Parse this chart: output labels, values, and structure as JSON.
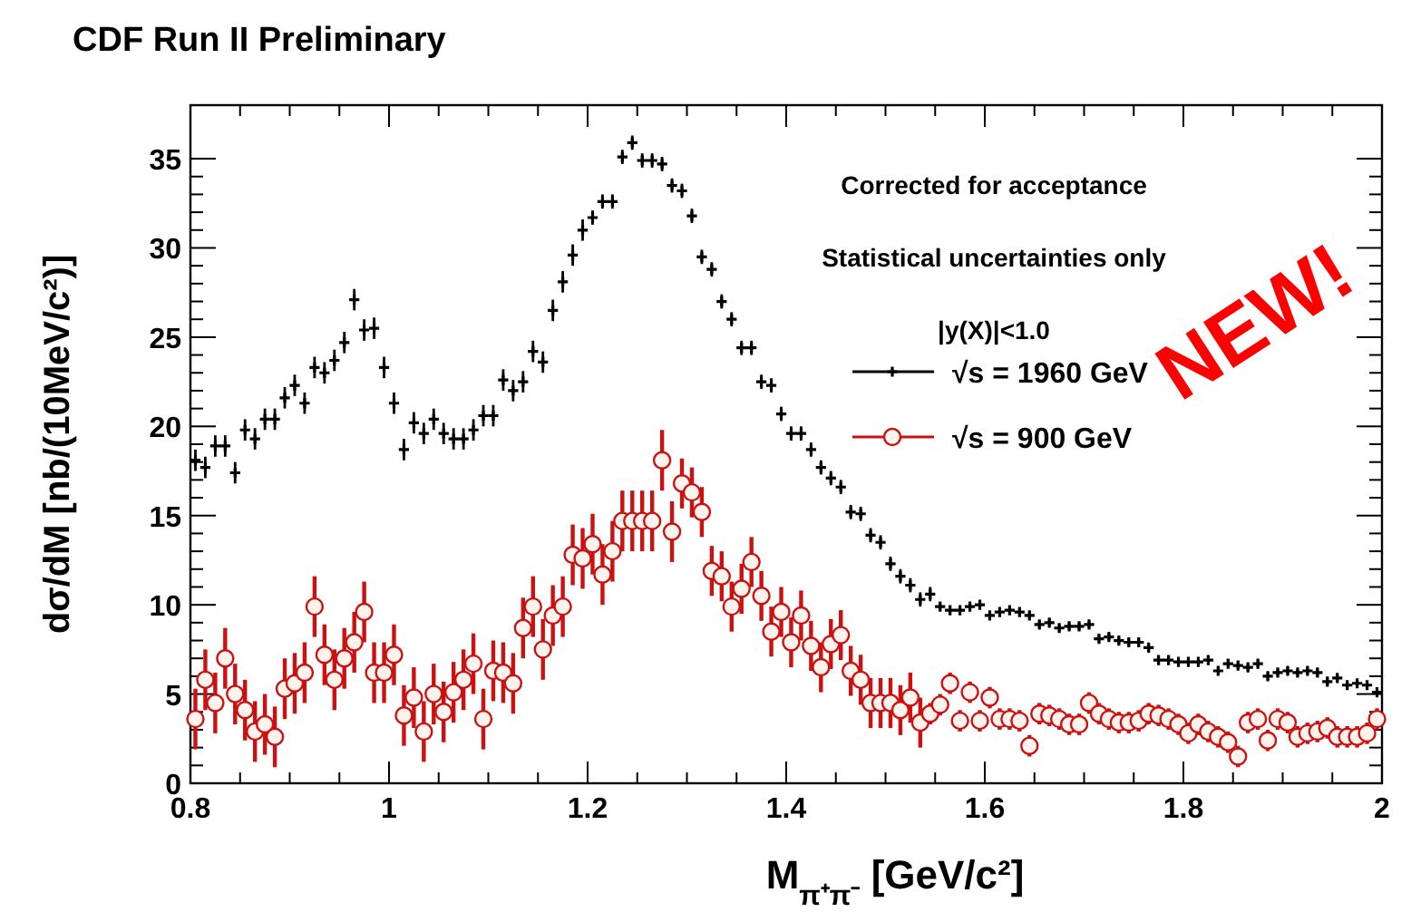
{
  "chart_data": {
    "type": "scatter",
    "title": "CDF Run II Preliminary",
    "xlabel": "M$_{π⁺π⁻}$ [GeV/c²]",
    "ylabel": "dσ/dM [nb/(10MeV/c²)]",
    "annotations": [
      "Corrected for acceptance",
      "Statistical uncertainties only",
      "|y(X)|<1.0",
      "NEW!"
    ],
    "xlim": [
      0.8,
      2
    ],
    "ylim": [
      0,
      38
    ],
    "xticks": [
      0.8,
      1,
      1.2,
      1.4,
      1.6,
      1.8,
      2
    ],
    "yticks": [
      0,
      5,
      10,
      15,
      20,
      25,
      30,
      35
    ],
    "grid": false,
    "legend": "top right",
    "x": [
      0.805,
      0.815,
      0.825,
      0.835,
      0.845,
      0.855,
      0.865,
      0.875,
      0.885,
      0.895,
      0.905,
      0.915,
      0.925,
      0.935,
      0.945,
      0.955,
      0.965,
      0.975,
      0.985,
      0.995,
      1.005,
      1.015,
      1.025,
      1.035,
      1.045,
      1.055,
      1.065,
      1.075,
      1.085,
      1.095,
      1.105,
      1.115,
      1.125,
      1.135,
      1.145,
      1.155,
      1.165,
      1.175,
      1.185,
      1.195,
      1.205,
      1.215,
      1.225,
      1.235,
      1.245,
      1.255,
      1.265,
      1.275,
      1.285,
      1.295,
      1.305,
      1.315,
      1.325,
      1.335,
      1.345,
      1.355,
      1.365,
      1.375,
      1.385,
      1.395,
      1.405,
      1.415,
      1.425,
      1.435,
      1.445,
      1.455,
      1.465,
      1.475,
      1.485,
      1.495,
      1.505,
      1.515,
      1.525,
      1.535,
      1.545,
      1.555,
      1.565,
      1.575,
      1.585,
      1.595,
      1.605,
      1.615,
      1.625,
      1.635,
      1.645,
      1.655,
      1.665,
      1.675,
      1.685,
      1.695,
      1.705,
      1.715,
      1.725,
      1.735,
      1.745,
      1.755,
      1.765,
      1.775,
      1.785,
      1.795,
      1.805,
      1.815,
      1.825,
      1.835,
      1.845,
      1.855,
      1.865,
      1.875,
      1.885,
      1.895,
      1.905,
      1.915,
      1.925,
      1.935,
      1.945,
      1.955,
      1.965,
      1.975,
      1.985,
      1.995
    ],
    "series": [
      {
        "name": "√s = 1960 GeV",
        "color": "#000000",
        "marker": "cross",
        "values": [
          18.1,
          17.7,
          18.9,
          18.9,
          17.4,
          19.8,
          19.3,
          20.4,
          20.4,
          21.6,
          22.3,
          21.3,
          23.3,
          23.0,
          23.7,
          24.7,
          27.1,
          25.4,
          25.5,
          23.3,
          21.3,
          18.7,
          20.2,
          19.6,
          20.4,
          19.6,
          19.3,
          19.3,
          19.8,
          20.6,
          20.6,
          22.6,
          22.0,
          22.5,
          24.2,
          23.6,
          26.5,
          28.1,
          29.6,
          31.0,
          31.7,
          32.6,
          32.6,
          35.1,
          35.9,
          34.9,
          34.9,
          34.7,
          33.5,
          33.2,
          31.8,
          29.5,
          28.8,
          27.0,
          26.0,
          24.4,
          24.4,
          22.5,
          22.3,
          20.7,
          19.6,
          19.6,
          18.7,
          17.7,
          17.1,
          16.6,
          15.2,
          15.1,
          13.9,
          13.5,
          12.3,
          11.6,
          11.1,
          10.3,
          10.6,
          9.9,
          9.7,
          9.7,
          9.9,
          10.0,
          9.4,
          9.6,
          9.7,
          9.6,
          9.4,
          8.9,
          9.0,
          8.7,
          8.8,
          8.8,
          8.9,
          8.1,
          8.2,
          8.0,
          7.9,
          7.9,
          7.6,
          6.9,
          6.9,
          6.8,
          6.8,
          6.8,
          6.9,
          6.3,
          6.7,
          6.6,
          6.5,
          6.7,
          6.0,
          6.2,
          6.3,
          6.2,
          6.3,
          6.2,
          5.7,
          5.9,
          5.5,
          5.6,
          5.5,
          5.1
        ],
        "errors": [
          0.6,
          0.6,
          0.6,
          0.6,
          0.6,
          0.6,
          0.6,
          0.6,
          0.6,
          0.6,
          0.6,
          0.6,
          0.6,
          0.6,
          0.6,
          0.6,
          0.6,
          0.6,
          0.6,
          0.6,
          0.6,
          0.6,
          0.6,
          0.6,
          0.6,
          0.6,
          0.6,
          0.6,
          0.6,
          0.6,
          0.6,
          0.6,
          0.6,
          0.6,
          0.6,
          0.6,
          0.6,
          0.6,
          0.6,
          0.6,
          0.4,
          0.4,
          0.4,
          0.4,
          0.4,
          0.4,
          0.4,
          0.4,
          0.4,
          0.4,
          0.4,
          0.4,
          0.4,
          0.4,
          0.4,
          0.4,
          0.4,
          0.4,
          0.4,
          0.4,
          0.4,
          0.4,
          0.4,
          0.4,
          0.4,
          0.4,
          0.4,
          0.4,
          0.4,
          0.4,
          0.4,
          0.4,
          0.4,
          0.4,
          0.4,
          0.2,
          0.2,
          0.2,
          0.2,
          0.2,
          0.2,
          0.2,
          0.2,
          0.2,
          0.2,
          0.2,
          0.2,
          0.2,
          0.2,
          0.2,
          0.2,
          0.2,
          0.2,
          0.2,
          0.2,
          0.2,
          0.2,
          0.2,
          0.2,
          0.2,
          0.2,
          0.2,
          0.2,
          0.2,
          0.2,
          0.2,
          0.2,
          0.2,
          0.2,
          0.2,
          0.2,
          0.2,
          0.2,
          0.2,
          0.2,
          0.2,
          0.2,
          0.2,
          0.2,
          0.2
        ]
      },
      {
        "name": "√s = 900 GeV",
        "color": "#cc1111",
        "marker": "circle",
        "values": [
          3.6,
          5.8,
          4.5,
          7.0,
          5.0,
          4.1,
          2.9,
          3.3,
          2.6,
          5.3,
          5.6,
          6.2,
          9.9,
          7.2,
          5.8,
          7.0,
          7.9,
          9.6,
          6.2,
          6.2,
          7.2,
          3.8,
          4.8,
          2.9,
          5.0,
          4.0,
          5.1,
          5.8,
          6.7,
          3.6,
          6.3,
          6.2,
          5.6,
          8.7,
          9.9,
          7.5,
          9.4,
          9.9,
          12.8,
          12.6,
          13.4,
          11.7,
          13.0,
          14.7,
          14.7,
          14.7,
          14.7,
          18.1,
          14.1,
          16.8,
          16.3,
          15.2,
          11.9,
          11.6,
          9.9,
          10.9,
          12.4,
          10.5,
          8.5,
          9.6,
          7.9,
          9.4,
          7.7,
          6.5,
          7.8,
          8.3,
          6.3,
          5.8,
          4.5,
          4.5,
          4.5,
          4.1,
          4.8,
          3.4,
          3.9,
          4.4,
          5.6,
          3.5,
          5.1,
          3.5,
          4.8,
          3.6,
          3.6,
          3.5,
          2.1,
          3.9,
          3.8,
          3.6,
          3.3,
          3.3,
          4.5,
          3.9,
          3.6,
          3.4,
          3.4,
          3.5,
          3.9,
          3.8,
          3.6,
          3.3,
          2.8,
          3.3,
          2.9,
          2.6,
          2.3,
          1.5,
          3.4,
          3.6,
          2.4,
          3.6,
          3.4,
          2.6,
          2.8,
          2.9,
          3.1,
          2.6,
          2.6,
          2.6,
          2.8,
          3.6
        ],
        "errors": [
          1.7,
          1.7,
          1.7,
          1.7,
          1.7,
          1.7,
          1.7,
          1.7,
          1.7,
          1.7,
          1.7,
          1.7,
          1.7,
          1.7,
          1.7,
          1.7,
          1.7,
          1.7,
          1.7,
          1.7,
          1.7,
          1.7,
          1.7,
          1.7,
          1.7,
          1.7,
          1.7,
          1.7,
          1.7,
          1.7,
          1.7,
          1.7,
          1.7,
          1.7,
          1.7,
          1.7,
          1.7,
          1.7,
          1.7,
          1.7,
          1.7,
          1.7,
          1.7,
          1.7,
          1.7,
          1.7,
          1.7,
          1.7,
          1.7,
          1.4,
          1.4,
          1.4,
          1.4,
          1.4,
          1.4,
          1.4,
          1.4,
          1.4,
          1.4,
          1.4,
          1.4,
          1.4,
          1.4,
          1.4,
          1.4,
          1.4,
          1.4,
          1.4,
          1.4,
          1.4,
          1.4,
          1.4,
          1.4,
          1.4,
          0.6,
          0.6,
          0.6,
          0.6,
          0.6,
          0.6,
          0.6,
          0.6,
          0.6,
          0.6,
          0.6,
          0.6,
          0.6,
          0.6,
          0.6,
          0.6,
          0.6,
          0.6,
          0.6,
          0.6,
          0.6,
          0.6,
          0.6,
          0.6,
          0.6,
          0.6,
          0.6,
          0.6,
          0.6,
          0.6,
          0.6,
          0.6,
          0.6,
          0.6,
          0.6,
          0.6,
          0.6,
          0.6,
          0.6,
          0.6,
          0.6,
          0.6,
          0.6,
          0.6,
          0.6,
          0.6
        ]
      }
    ]
  }
}
